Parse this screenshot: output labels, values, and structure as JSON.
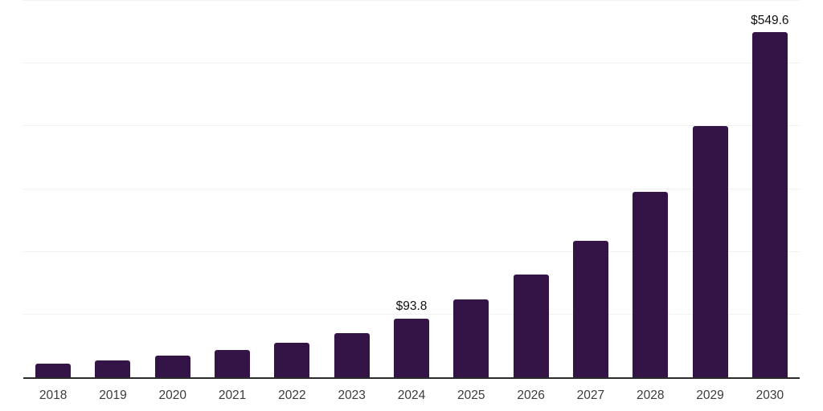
{
  "chart_data": {
    "type": "bar",
    "title": "",
    "xlabel": "",
    "ylabel": "",
    "categories": [
      "2018",
      "2019",
      "2020",
      "2021",
      "2022",
      "2023",
      "2024",
      "2025",
      "2026",
      "2027",
      "2028",
      "2029",
      "2030"
    ],
    "values": [
      22,
      27,
      34,
      43,
      55,
      71,
      93.8,
      124,
      164,
      218,
      295,
      400,
      549.6
    ],
    "data_labels": {
      "2024": "$93.8",
      "2030": "$549.6"
    },
    "ylim": [
      0,
      600
    ],
    "gridline_step": 100,
    "grid": true,
    "legend": false,
    "colors": {
      "bar": "#341347",
      "gridline": "#f2f2f2",
      "axis_line": "#2b2b2b",
      "tick_label": "#3b3b3b",
      "data_label": "#111111",
      "background": "#ffffff"
    }
  }
}
